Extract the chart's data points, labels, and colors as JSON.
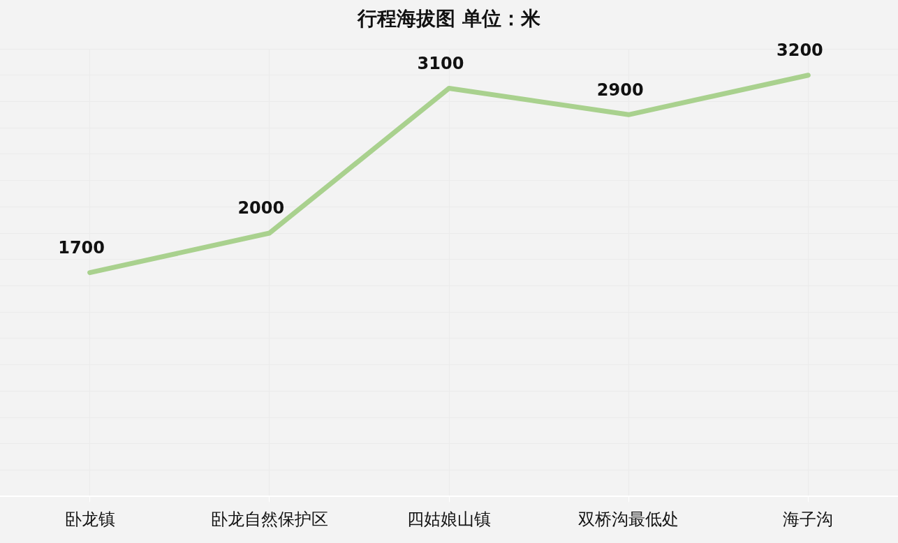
{
  "chart_data": {
    "type": "line",
    "title": "行程海拔图  单位：米",
    "categories": [
      "卧龙镇",
      "卧龙自然保护区",
      "四姑娘山镇",
      "双桥沟最低处",
      "海子沟"
    ],
    "series": [
      {
        "color": "#a9d18e",
        "values": [
          1700,
          2000,
          3100,
          2900,
          3200
        ]
      }
    ],
    "data_labels": true,
    "grid": true,
    "legend": false,
    "tick_labels": "x",
    "marker": "none",
    "line_style": "solid"
  }
}
